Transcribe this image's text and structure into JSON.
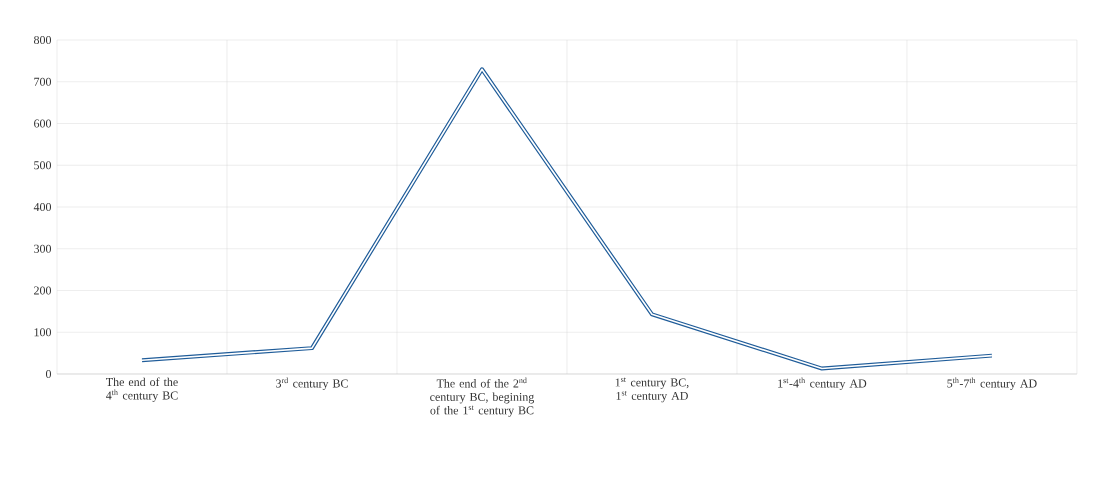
{
  "chart_data": {
    "type": "line",
    "categories": [
      "The end of the 4$^{th}$ century BC",
      "3$^{rd}$ century BC",
      "The end of the 2$^{nd}$ century BC, begining of the 1$^{st}$ century BC",
      "1$^{st}$ century BC, 1$^{st}$ century AD",
      "1$^{st}$-4$^{th}$ century AD",
      "5$^{th}$-7$^{th}$ century AD"
    ],
    "series": [
      {
        "color": "#1f5c99",
        "values": [
          33,
          62,
          730,
          143,
          13,
          44
        ]
      }
    ],
    "ylim": [
      0,
      800
    ],
    "yticks": [
      0,
      100,
      200,
      300,
      400,
      500,
      600,
      700,
      800
    ],
    "grid": true,
    "marker": "none",
    "line_style": "solid"
  }
}
